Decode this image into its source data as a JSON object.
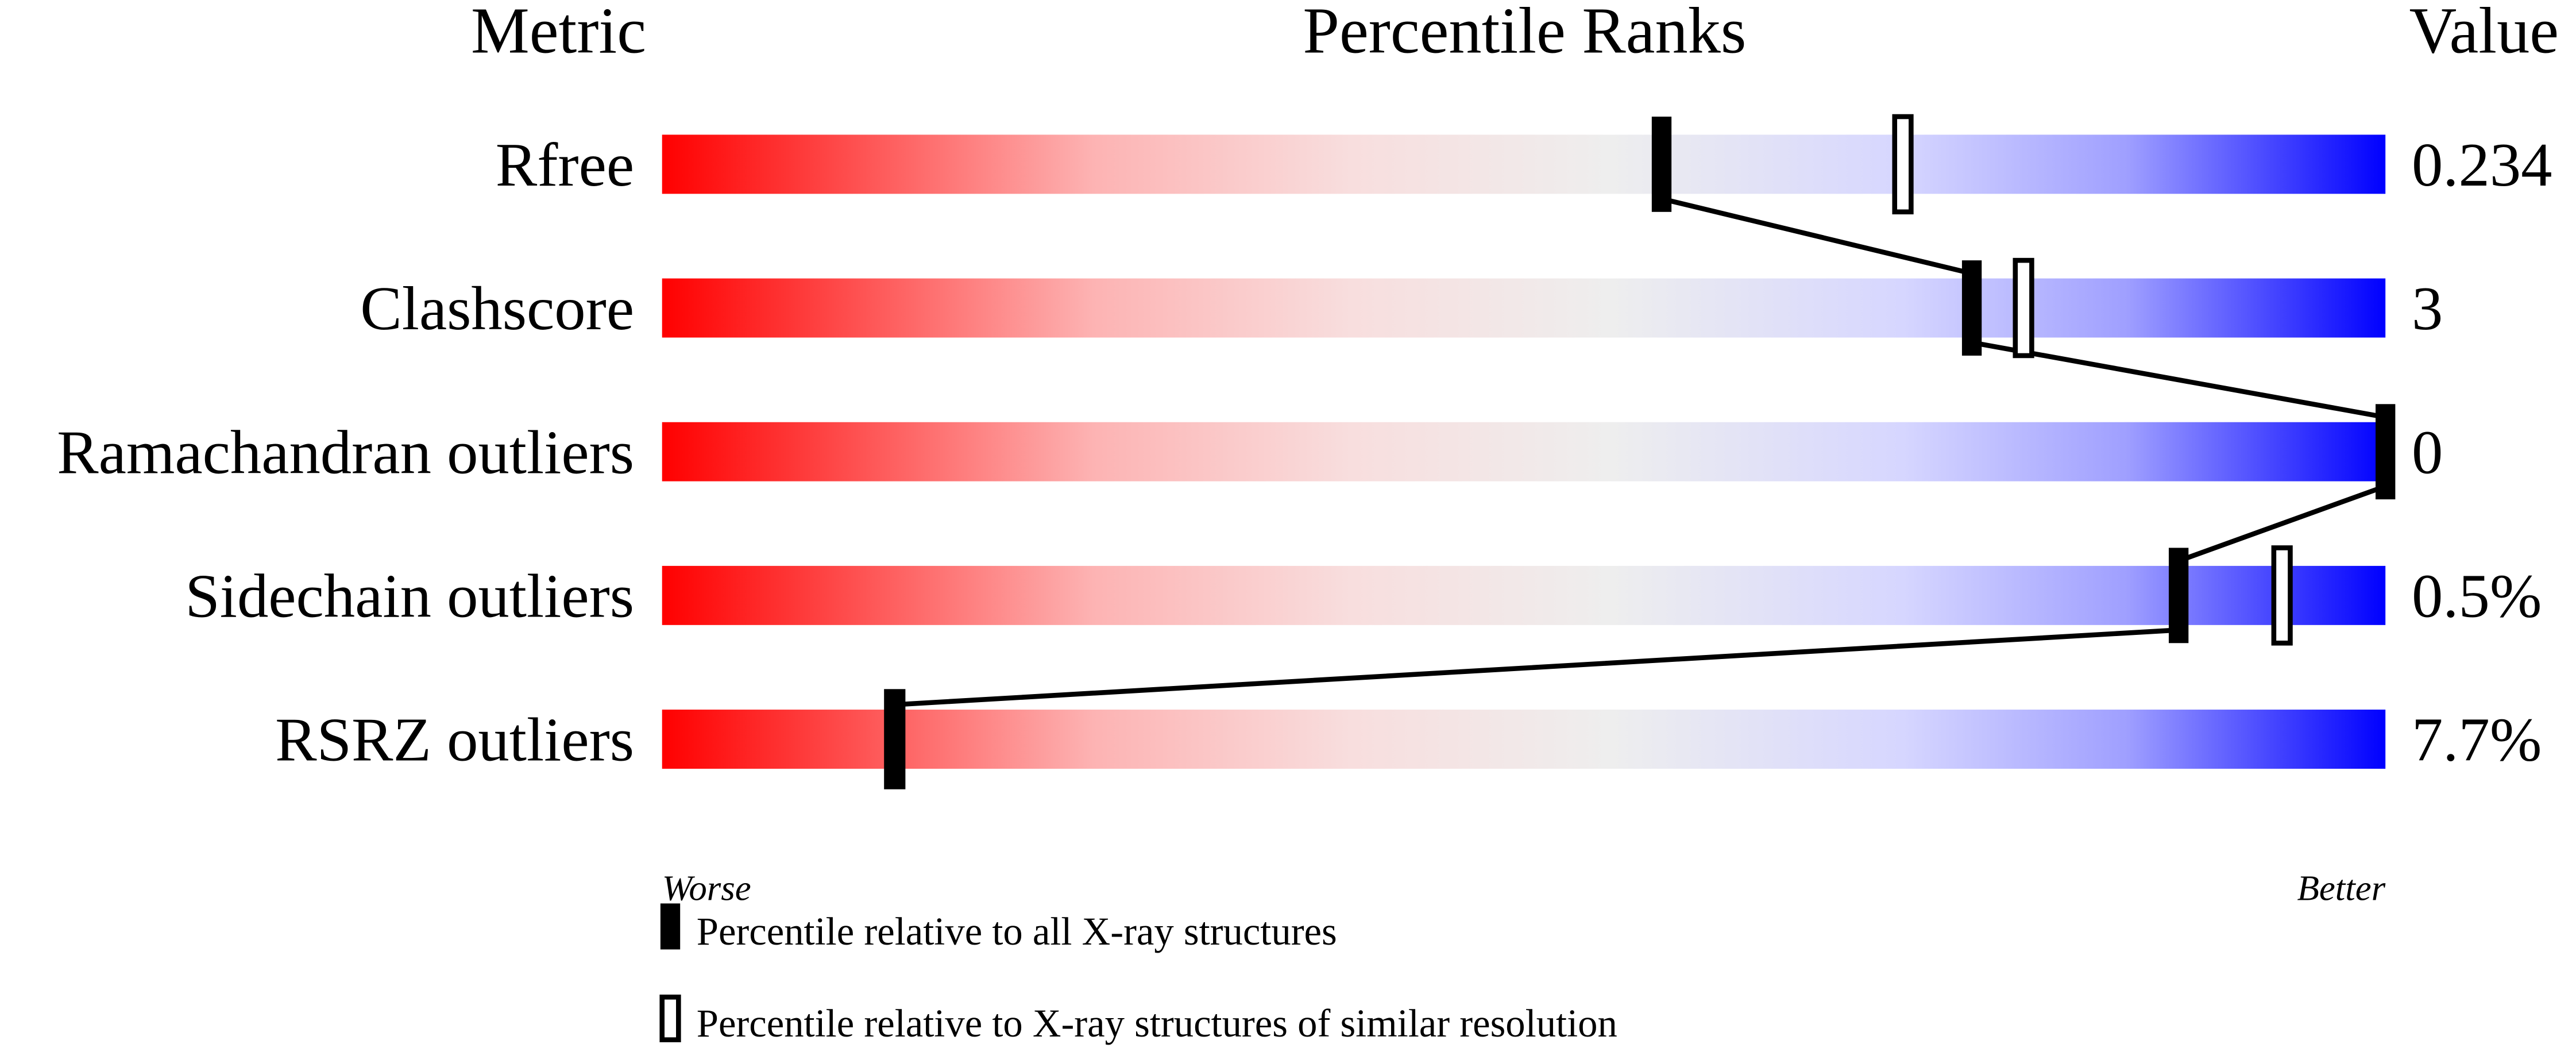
{
  "chart_data": {
    "type": "bar",
    "headers": {
      "metric": "Metric",
      "ranks": "Percentile Ranks",
      "value": "Value"
    },
    "axis": {
      "left_label": "Worse",
      "right_label": "Better",
      "range": [
        0,
        100
      ]
    },
    "gradient_colors": [
      "#ff0000",
      "#eeeeee",
      "#d6d6ff",
      "#0000ff"
    ],
    "rows": [
      {
        "metric": "Rfree",
        "value": "0.234",
        "percentile_all": 58,
        "percentile_similar": 72
      },
      {
        "metric": "Clashscore",
        "value": "3",
        "percentile_all": 76,
        "percentile_similar": 79
      },
      {
        "metric": "Ramachandran outliers",
        "value": "0",
        "percentile_all": 100,
        "percentile_similar": null
      },
      {
        "metric": "Sidechain outliers",
        "value": "0.5%",
        "percentile_all": 88,
        "percentile_similar": 94
      },
      {
        "metric": "RSRZ outliers",
        "value": "7.7%",
        "percentile_all": 13.5,
        "percentile_similar": 13.5
      }
    ],
    "legend": [
      {
        "marker": "filled",
        "label": "Percentile relative to all X-ray structures"
      },
      {
        "marker": "hollow",
        "label": "Percentile relative to X-ray structures of similar resolution"
      }
    ]
  }
}
